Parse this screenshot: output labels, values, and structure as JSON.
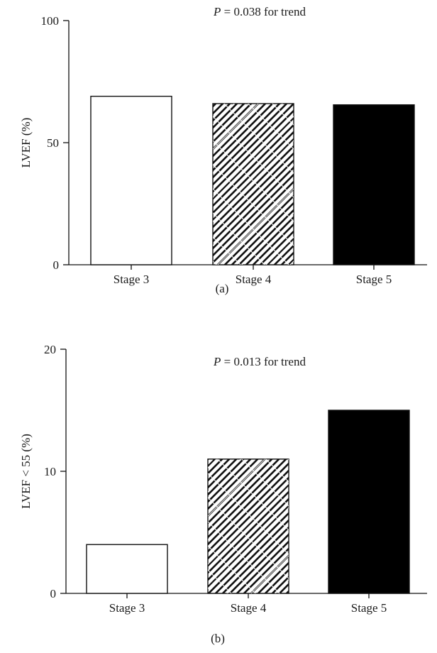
{
  "chart_data": [
    {
      "type": "bar",
      "panel_label": "(a)",
      "annotation": {
        "p_symbol": "P",
        "rest": " = 0.038 for trend"
      },
      "ylabel": "LVEF (%)",
      "xlabel": "",
      "ylim": [
        0,
        100
      ],
      "yticks": [
        0,
        50,
        100
      ],
      "categories": [
        "Stage 3",
        "Stage 4",
        "Stage 5"
      ],
      "values": [
        69,
        66,
        65.5
      ],
      "fills": [
        "white",
        "hatch",
        "black"
      ]
    },
    {
      "type": "bar",
      "panel_label": "(b)",
      "annotation": {
        "p_symbol": "P",
        "rest": " = 0.013 for trend"
      },
      "ylabel": "LVEF < 55 (%)",
      "xlabel": "",
      "ylim": [
        0,
        20
      ],
      "yticks": [
        0,
        10,
        20
      ],
      "categories": [
        "Stage 3",
        "Stage 4",
        "Stage 5"
      ],
      "values": [
        4,
        11,
        15
      ],
      "fills": [
        "white",
        "hatch",
        "black"
      ]
    }
  ]
}
